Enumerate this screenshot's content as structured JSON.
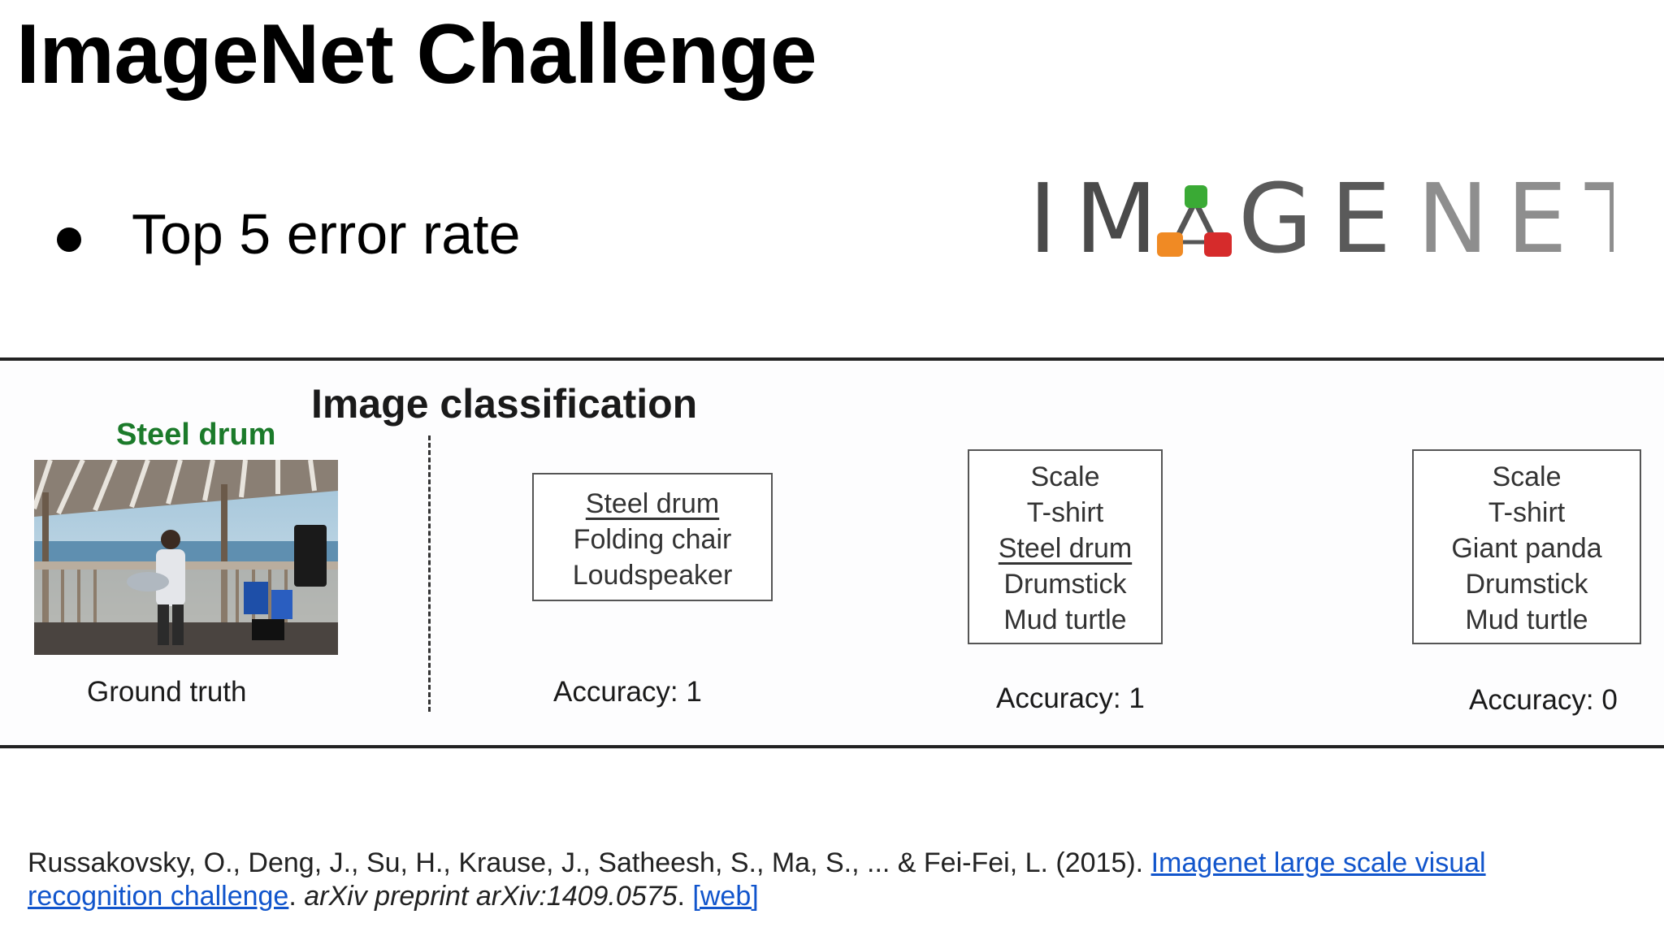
{
  "slide": {
    "title": "ImageNet Challenge",
    "bullets": [
      "Top 5 error rate"
    ]
  },
  "logo": {
    "text": "IMAGENET",
    "colors": {
      "dark": "#4a4a4a",
      "light": "#8e8e8e",
      "green": "#3aaa35",
      "orange": "#f08a24",
      "red": "#d62b2b"
    }
  },
  "figure": {
    "title": "Image classification",
    "ground_truth": {
      "class_label": "Steel drum",
      "caption": "Ground truth"
    },
    "predictions": [
      {
        "items": [
          {
            "text": "Steel drum",
            "correct": true
          },
          {
            "text": "Folding chair",
            "correct": false
          },
          {
            "text": "Loudspeaker",
            "correct": false
          }
        ],
        "accuracy": "Accuracy: 1"
      },
      {
        "items": [
          {
            "text": "Scale",
            "correct": false
          },
          {
            "text": "T-shirt",
            "correct": false
          },
          {
            "text": "Steel drum",
            "correct": true
          },
          {
            "text": "Drumstick",
            "correct": false
          },
          {
            "text": "Mud turtle",
            "correct": false
          }
        ],
        "accuracy": "Accuracy: 1"
      },
      {
        "items": [
          {
            "text": "Scale",
            "correct": false
          },
          {
            "text": "T-shirt",
            "correct": false
          },
          {
            "text": "Giant panda",
            "correct": false
          },
          {
            "text": "Drumstick",
            "correct": false
          },
          {
            "text": "Mud turtle",
            "correct": false
          }
        ],
        "accuracy": "Accuracy: 0"
      }
    ]
  },
  "citation": {
    "authors": "Russakovsky, O., Deng, J., Su, H., Krause, J., Satheesh, S., Ma, S., ... & Fei-Fei, L. (2015). ",
    "link_title": "Imagenet large scale visual recognition challenge",
    "separator": ". ",
    "venue": "arXiv preprint arXiv:1409.0575",
    "after_venue": ". ",
    "web_link": "[web]"
  }
}
